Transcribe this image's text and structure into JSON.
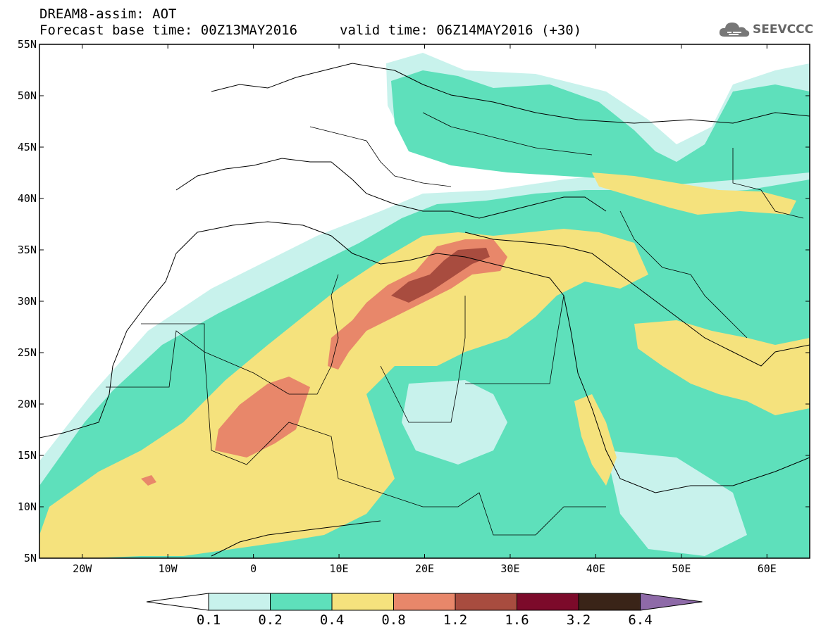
{
  "header": {
    "title": "DREAM8-assim: AOT",
    "base_time": "Forecast base time: 00Z13MAY2016",
    "valid_time": "valid time: 06Z14MAY2016 (+30)",
    "logo_text": "SEEVCCC"
  },
  "map": {
    "lat_labels": [
      "55N",
      "50N",
      "45N",
      "40N",
      "35N",
      "30N",
      "25N",
      "20N",
      "15N",
      "10N",
      "5N"
    ],
    "lon_labels": [
      "20W",
      "10W",
      "0",
      "10E",
      "20E",
      "30E",
      "40E",
      "50E",
      "60E"
    ]
  },
  "legend": {
    "colors": [
      "#ffffff",
      "#c8f2ec",
      "#5ee0bb",
      "#f5e27d",
      "#e8876a",
      "#a84c3f",
      "#7c0a2a",
      "#3a2418",
      "#8e6aa8"
    ],
    "labels": [
      "0.1",
      "0.2",
      "0.4",
      "0.8",
      "1.2",
      "1.6",
      "3.2",
      "6.4"
    ]
  }
}
